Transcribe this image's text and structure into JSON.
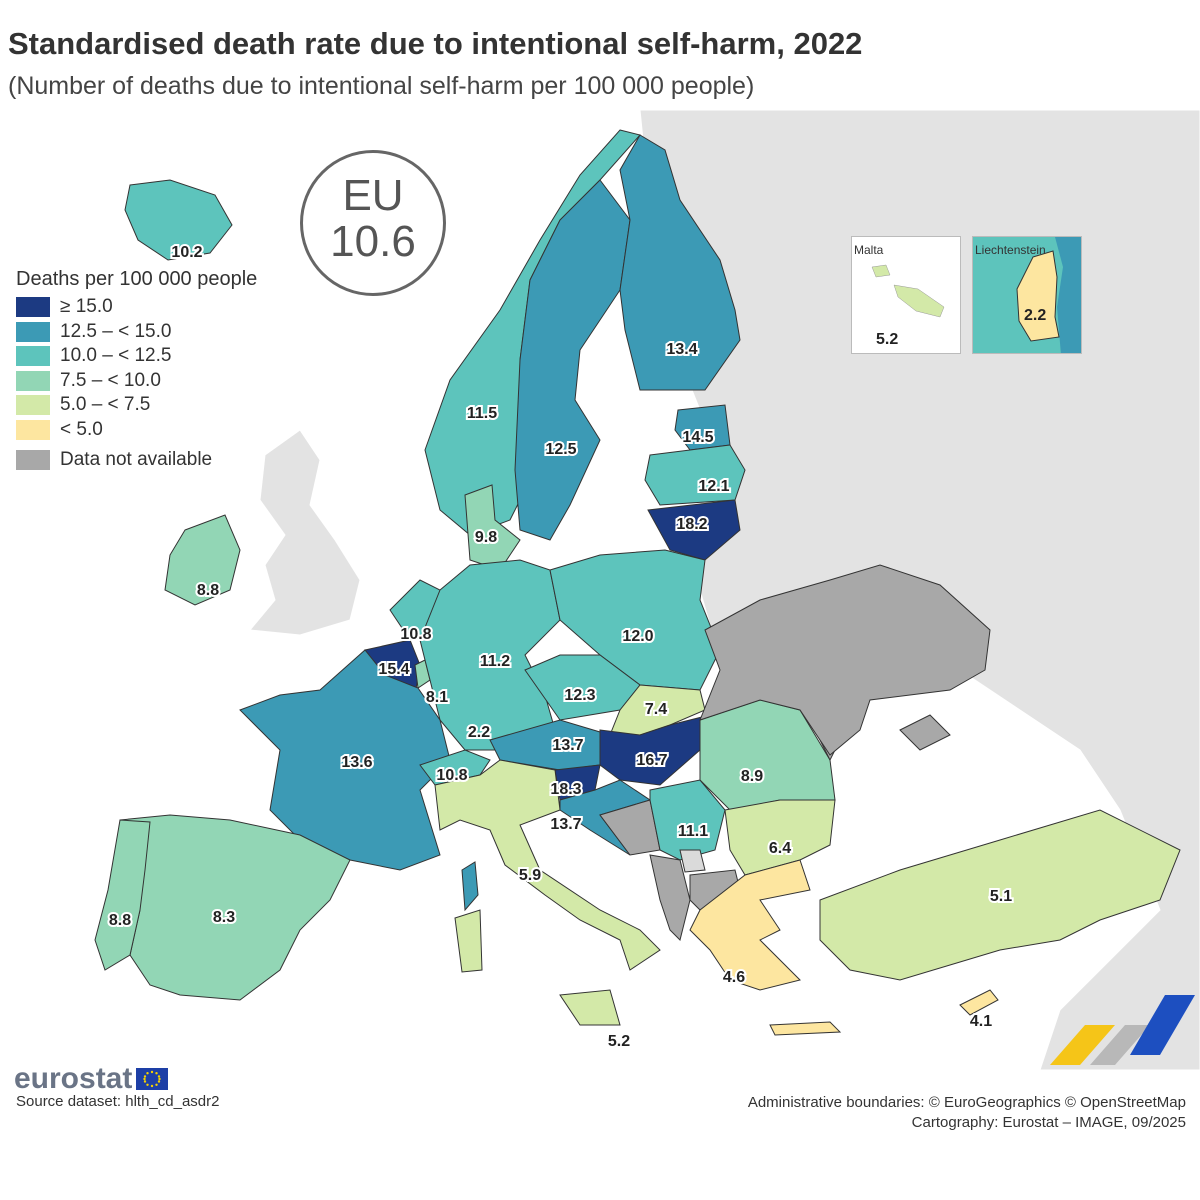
{
  "title": "Standardised death rate due to intentional self-harm, 2022",
  "subtitle": "(Number of deaths due to intentional self-harm per 100 000 people)",
  "eu_badge": {
    "label": "EU",
    "value": "10.6"
  },
  "legend": {
    "title": "Deaths per 100 000 people",
    "items": [
      {
        "label": "≥ 15.0",
        "color": "#1c3a82"
      },
      {
        "label": "12.5 – < 15.0",
        "color": "#3c9ab5"
      },
      {
        "label": "10.0 – < 12.5",
        "color": "#5dc4bc"
      },
      {
        "label": "7.5 – < 10.0",
        "color": "#92d6b5"
      },
      {
        "label": "5.0 – < 7.5",
        "color": "#d3e9a8"
      },
      {
        "label": "< 5.0",
        "color": "#fde6a0"
      },
      {
        "label": "Data not available",
        "color": "#a8a8a8"
      }
    ]
  },
  "insets": {
    "malta": {
      "name": "Malta",
      "value": "5.2"
    },
    "liechtenstein": {
      "name": "Liechtenstein",
      "value": "2.2"
    }
  },
  "chart_data": {
    "type": "choropleth",
    "title": "Standardised death rate due to intentional self-harm, 2022",
    "unit": "Deaths per 100 000 people",
    "eu_average": 10.6,
    "countries": [
      {
        "name": "Iceland",
        "value": 10.2
      },
      {
        "name": "Norway",
        "value": 11.5
      },
      {
        "name": "Sweden",
        "value": 12.5
      },
      {
        "name": "Finland",
        "value": 13.4
      },
      {
        "name": "Estonia",
        "value": 14.5
      },
      {
        "name": "Latvia",
        "value": 12.1
      },
      {
        "name": "Lithuania",
        "value": 18.2
      },
      {
        "name": "Denmark",
        "value": 9.8
      },
      {
        "name": "Ireland",
        "value": 8.8
      },
      {
        "name": "Netherlands",
        "value": 10.8
      },
      {
        "name": "Belgium",
        "value": 15.4
      },
      {
        "name": "Luxembourg",
        "value": 8.1
      },
      {
        "name": "Germany",
        "value": 11.2
      },
      {
        "name": "Poland",
        "value": 12.0
      },
      {
        "name": "Czechia",
        "value": 12.3
      },
      {
        "name": "Slovakia",
        "value": 7.4
      },
      {
        "name": "Austria",
        "value": 13.7
      },
      {
        "name": "Hungary",
        "value": 16.7
      },
      {
        "name": "Slovenia",
        "value": 18.3
      },
      {
        "name": "Croatia",
        "value": 13.7
      },
      {
        "name": "Serbia",
        "value": 11.1
      },
      {
        "name": "Romania",
        "value": 8.9
      },
      {
        "name": "Bulgaria",
        "value": 6.4
      },
      {
        "name": "France",
        "value": 13.6
      },
      {
        "name": "Switzerland",
        "value": 10.8
      },
      {
        "name": "Liechtenstein",
        "value": 2.2
      },
      {
        "name": "Italy",
        "value": 5.9
      },
      {
        "name": "Malta",
        "value": 5.2
      },
      {
        "name": "Spain",
        "value": 8.3
      },
      {
        "name": "Portugal",
        "value": 8.8
      },
      {
        "name": "Greece",
        "value": 4.6
      },
      {
        "name": "Cyprus",
        "value": 4.1
      },
      {
        "name": "Turkey",
        "value": 5.1
      },
      {
        "name": "Ukraine",
        "value": null
      },
      {
        "name": "Belarus",
        "value": null
      },
      {
        "name": "United Kingdom",
        "value": null
      }
    ]
  },
  "logo": {
    "text": "eurostat"
  },
  "source": "Source dataset: hlth_cd_asdr2",
  "credits": {
    "line1": "Administrative boundaries: © EuroGeographics © OpenStreetMap",
    "line2": "Cartography: Eurostat – IMAGE, 09/2025"
  }
}
